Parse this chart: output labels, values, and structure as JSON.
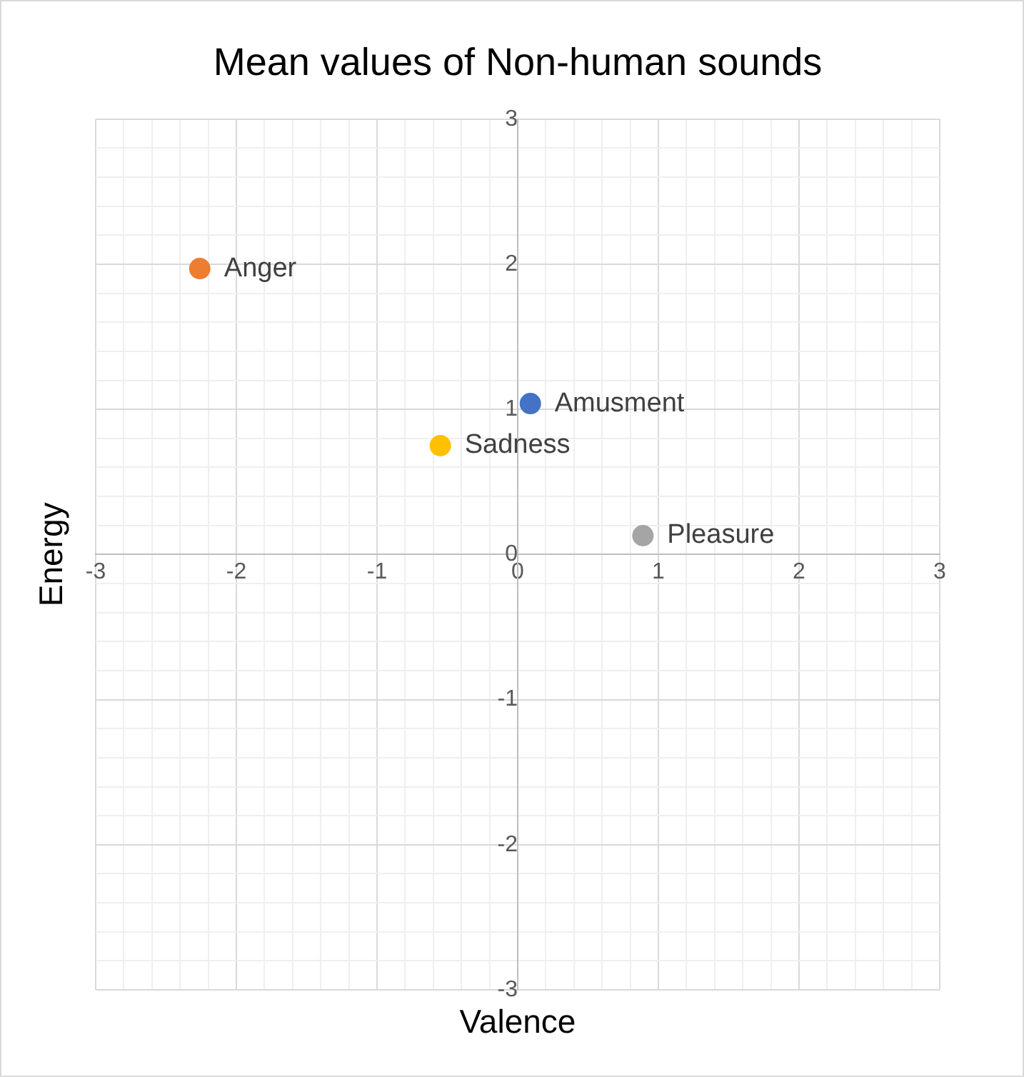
{
  "chart_data": {
    "type": "scatter",
    "title": "Mean values of Non-human sounds",
    "xlabel": "Valence",
    "ylabel": "Energy",
    "marker": "circle",
    "legend": false,
    "grid": true,
    "xlim": [
      -3,
      3
    ],
    "ylim": [
      -3,
      3
    ],
    "xticks": [
      -3,
      {
        "value": -2.8,
        "label": null
      },
      {
        "value": -2.6,
        "label": null
      },
      {
        "value": -2.4,
        "label": null
      },
      {
        "value": -2.2,
        "label": null
      },
      -2,
      {
        "value": -1.8,
        "label": null
      },
      {
        "value": -1.6,
        "label": null
      },
      {
        "value": -1.4,
        "label": null
      },
      {
        "value": -1.2,
        "label": null
      },
      -1,
      {
        "value": -0.8,
        "label": null
      },
      {
        "value": -0.6,
        "label": null
      },
      {
        "value": -0.4,
        "label": null
      },
      {
        "value": -0.2,
        "label": null
      },
      0,
      {
        "value": 0.2,
        "label": null
      },
      {
        "value": 0.4,
        "label": null
      },
      {
        "value": 0.6,
        "label": null
      },
      {
        "value": 0.8,
        "label": null
      },
      1,
      {
        "value": 1.2,
        "label": null
      },
      {
        "value": 1.4,
        "label": null
      },
      {
        "value": 1.6,
        "label": null
      },
      {
        "value": 1.8,
        "label": null
      },
      2,
      {
        "value": 2.2,
        "label": null
      },
      {
        "value": 2.4,
        "label": null
      },
      {
        "value": 2.6,
        "label": null
      },
      {
        "value": 2.8,
        "label": null
      },
      3
    ],
    "yticks": [
      -3,
      {
        "value": -2.8,
        "label": null
      },
      {
        "value": -2.6,
        "label": null
      },
      {
        "value": -2.4,
        "label": null
      },
      {
        "value": -2.2,
        "label": null
      },
      -2,
      {
        "value": -1.8,
        "label": null
      },
      {
        "value": -1.6,
        "label": null
      },
      {
        "value": -1.4,
        "label": null
      },
      {
        "value": -1.2,
        "label": null
      },
      -1,
      {
        "value": -0.8,
        "label": null
      },
      {
        "value": -0.6,
        "label": null
      },
      {
        "value": -0.4,
        "label": null
      },
      {
        "value": -0.2,
        "label": null
      },
      0,
      {
        "value": 0.2,
        "label": null
      },
      {
        "value": 0.4,
        "label": null
      },
      {
        "value": 0.6,
        "label": null
      },
      {
        "value": 0.8,
        "label": null
      },
      1,
      {
        "value": 1.2,
        "label": null
      },
      {
        "value": 1.4,
        "label": null
      },
      {
        "value": 1.6,
        "label": null
      },
      {
        "value": 1.8,
        "label": null
      },
      2,
      {
        "value": 2.2,
        "label": null
      },
      {
        "value": 2.4,
        "label": null
      },
      {
        "value": 2.6,
        "label": null
      },
      {
        "value": 2.8,
        "label": null
      },
      3
    ],
    "series": [
      {
        "name": "Anger",
        "color": "#ed7d31",
        "x": [
          -2.26
        ],
        "values": [
          1.97
        ]
      },
      {
        "name": "Amusment",
        "color": "#4472c4",
        "x": [
          0.09
        ],
        "values": [
          1.04
        ]
      },
      {
        "name": "Sadness",
        "color": "#ffc000",
        "x": [
          -0.55
        ],
        "values": [
          0.75
        ]
      },
      {
        "name": "Pleasure",
        "color": "#a5a5a5",
        "x": [
          0.89
        ],
        "values": [
          0.13
        ]
      }
    ]
  }
}
